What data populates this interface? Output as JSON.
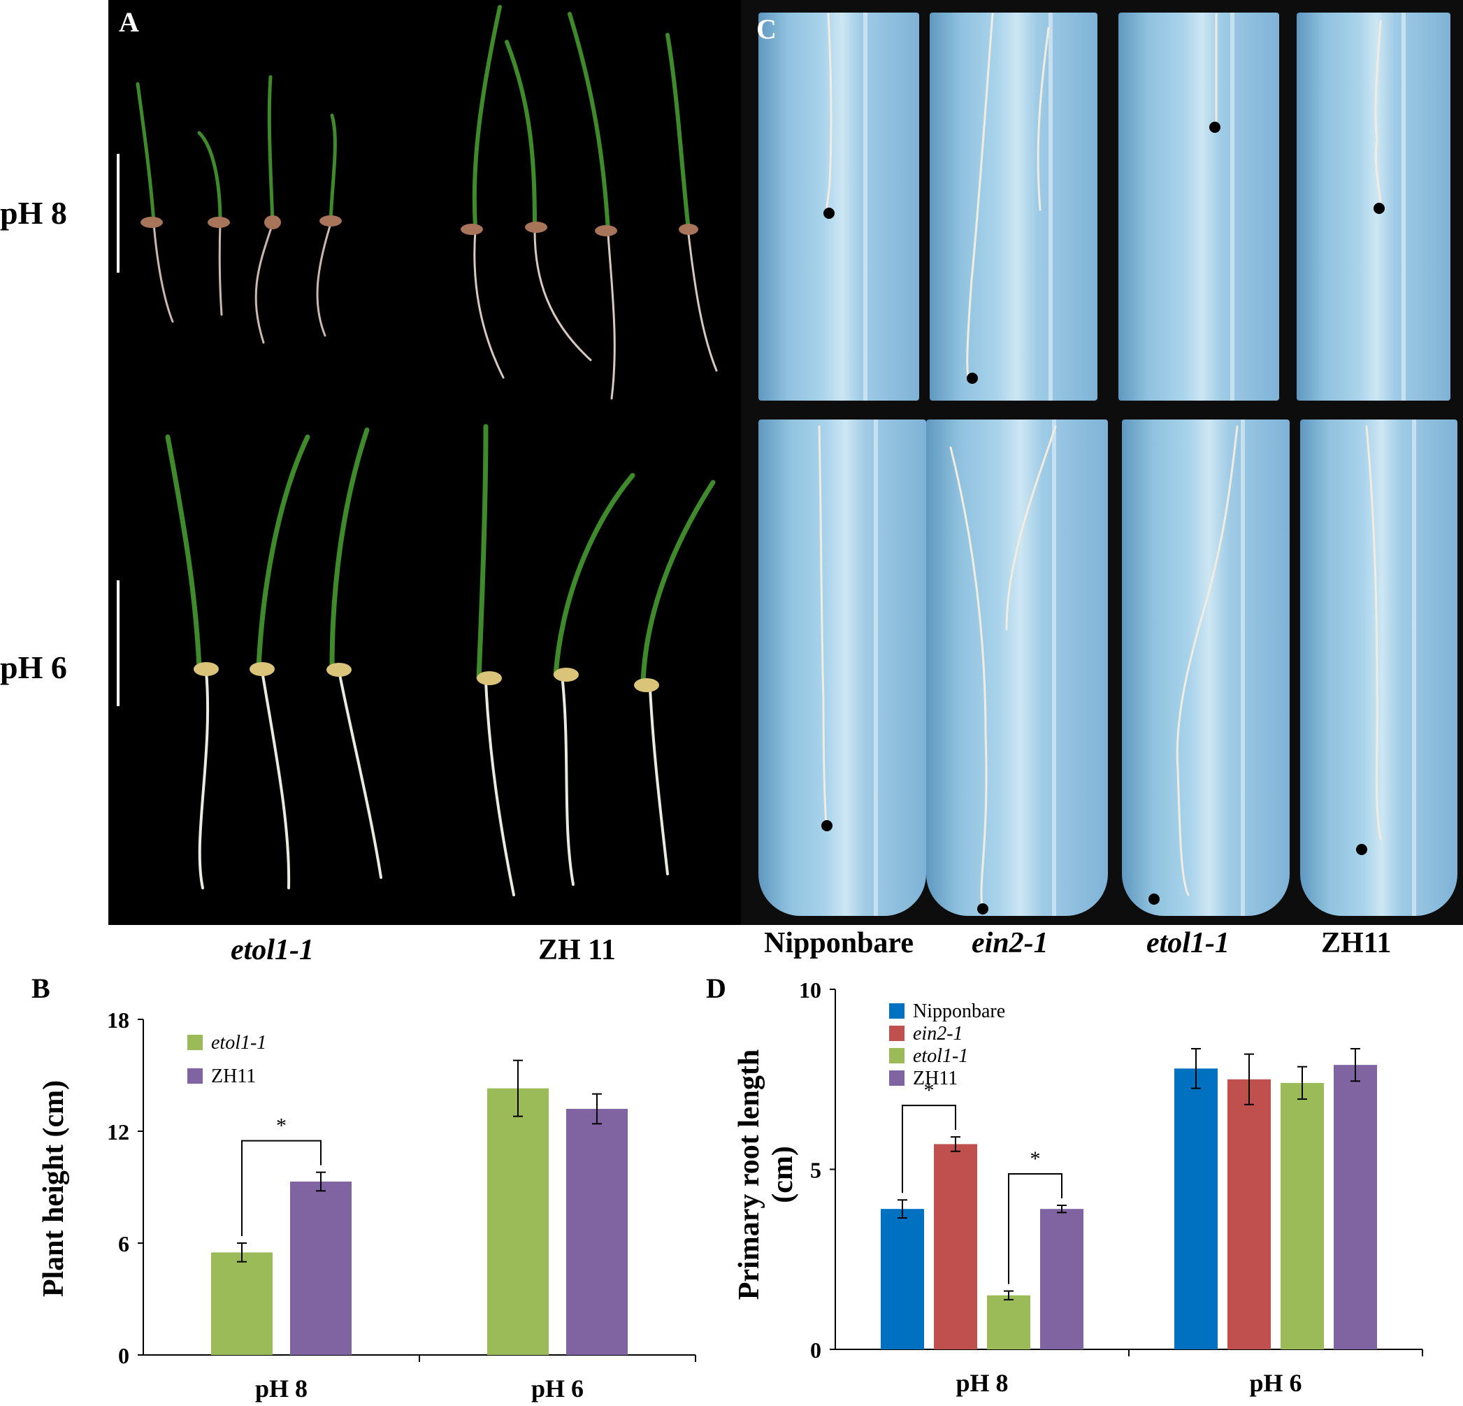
{
  "panelA": {
    "letter": "A",
    "row_labels": [
      "pH 8",
      "pH 6"
    ],
    "column_labels": [
      "etol1-1",
      "ZH 11"
    ]
  },
  "panelC": {
    "letter": "C",
    "column_labels": [
      "Nipponbare",
      "ein2-1",
      "etol1-1",
      "ZH11"
    ]
  },
  "panelB": {
    "letter": "B",
    "ylabel": "Plant height (cm)",
    "legend": [
      "etol1-1",
      "ZH11"
    ],
    "significance": "*"
  },
  "panelD": {
    "letter": "D",
    "ylabel_lines": [
      "Primary root length",
      "(cm)"
    ],
    "legend": [
      "Nipponbare",
      "ein2-1",
      "etol1-1",
      "ZH11"
    ],
    "significance": "*"
  },
  "colors": {
    "etol1": "#9bbb59",
    "zh11": "#8064a2",
    "nipponbare": "#0070c0",
    "ein2": "#c0504d"
  },
  "chart_data": [
    {
      "type": "bar",
      "panel": "B",
      "categories": [
        "pH 8",
        "pH 6"
      ],
      "series": [
        {
          "name": "etol1-1",
          "values": [
            5.5,
            14.3
          ],
          "errors": [
            0.5,
            1.5
          ]
        },
        {
          "name": "ZH11",
          "values": [
            9.3,
            13.2
          ],
          "errors": [
            0.5,
            0.8
          ]
        }
      ],
      "ylabel": "Plant height (cm)",
      "ylim": [
        0,
        18
      ],
      "yticks": [
        "0",
        "6",
        "12",
        "18"
      ],
      "significance": [
        {
          "category": "pH 8",
          "label": "*"
        }
      ]
    },
    {
      "type": "bar",
      "panel": "D",
      "categories": [
        "pH 8",
        "pH 6"
      ],
      "series": [
        {
          "name": "Nipponbare",
          "values": [
            3.9,
            7.8
          ],
          "errors": [
            0.25,
            0.55
          ]
        },
        {
          "name": "ein2-1",
          "values": [
            5.7,
            7.5
          ],
          "errors": [
            0.2,
            0.7
          ]
        },
        {
          "name": "etol1-1",
          "values": [
            1.5,
            7.4
          ],
          "errors": [
            0.12,
            0.45
          ]
        },
        {
          "name": "ZH11",
          "values": [
            3.9,
            7.9
          ],
          "errors": [
            0.1,
            0.45
          ]
        }
      ],
      "ylabel": "Primary root length (cm)",
      "ylim": [
        0,
        10
      ],
      "yticks": [
        "0",
        "5",
        "10"
      ],
      "significance": [
        {
          "category": "pH 8",
          "pair": [
            "Nipponbare",
            "ein2-1"
          ],
          "label": "*"
        },
        {
          "category": "pH 8",
          "pair": [
            "etol1-1",
            "ZH11"
          ],
          "label": "*"
        }
      ]
    }
  ]
}
